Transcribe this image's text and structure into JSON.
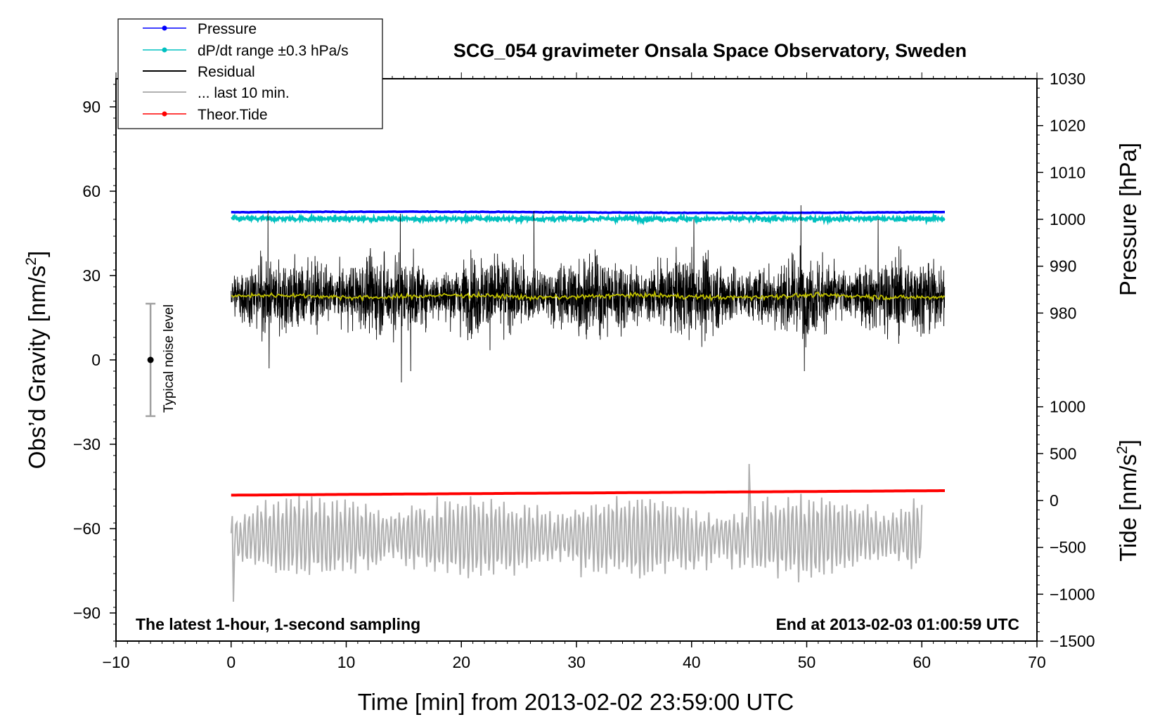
{
  "chart_data": {
    "type": "line",
    "title": "SCG_054 gravimeter Onsala Space Observatory, Sweden",
    "xlabel": "Time [min] from 2013-02-02 23:59:00 UTC",
    "ylabel_left": "Obs’d Gravity [nm/s",
    "ylabel_left_sup": "2",
    "ylabel_left_end": "]",
    "ylabel_right_upper": "Pressure [hPa]",
    "ylabel_right_lower": "Tide [nm/s",
    "ylabel_right_lower_sup": "2",
    "ylabel_right_lower_end": "]",
    "xlim": [
      -10,
      70
    ],
    "ylim_left": [
      -100,
      100
    ],
    "ylim_pressure": [
      970,
      1030
    ],
    "ylim_tide": [
      -1500,
      1500
    ],
    "x_ticks": [
      "−10",
      "0",
      "10",
      "20",
      "30",
      "40",
      "50",
      "60",
      "70"
    ],
    "x_tick_values": [
      -10,
      0,
      10,
      20,
      30,
      40,
      50,
      60,
      70
    ],
    "left_ticks": [
      "90",
      "60",
      "30",
      "0",
      "−30",
      "−60",
      "−90"
    ],
    "left_tick_values": [
      90,
      60,
      30,
      0,
      -30,
      -60,
      -90
    ],
    "pressure_ticks": [
      "1030",
      "1020",
      "1010",
      "1000",
      "990",
      "980"
    ],
    "pressure_tick_values": [
      1030,
      1020,
      1010,
      1000,
      990,
      980
    ],
    "tide_ticks": [
      "1000",
      "500",
      "0",
      "−500",
      "−1000",
      "−1500"
    ],
    "tide_tick_values": [
      1000,
      500,
      0,
      -500,
      -1000,
      -1500
    ],
    "legend": [
      {
        "label": "Pressure",
        "color": "#0000ff",
        "marker": true
      },
      {
        "label": "dP/dt range ±0.3 hPa/s",
        "color": "#00c0c0",
        "marker": true
      },
      {
        "label": "Residual",
        "color": "#000000",
        "marker": false
      },
      {
        "label": "... last 10 min.",
        "color": "#b0b0b0",
        "marker": false
      },
      {
        "label": "Theor.Tide",
        "color": "#ff0000",
        "marker": true
      }
    ],
    "annotations": {
      "bottom_left": "The latest 1-hour, 1-second sampling",
      "bottom_right": "End at 2013-02-03 01:00:59 UTC",
      "noise_label": "Typical noise level"
    },
    "noise_bar": {
      "x": -7,
      "center": 0,
      "half_range": 20
    },
    "series": [
      {
        "name": "Pressure",
        "color": "#0000ff",
        "axis": "pressure",
        "x_range": [
          0,
          62
        ],
        "level": 1001.5
      },
      {
        "name": "dP/dt range",
        "color": "#00c0c0",
        "axis": "left",
        "x_range": [
          0,
          62
        ],
        "level": 50.2
      },
      {
        "name": "Residual",
        "color": "#000000",
        "axis": "left",
        "x_range": [
          0,
          62
        ],
        "level": 23,
        "spread": 9,
        "min": -9,
        "max": 55
      },
      {
        "name": "Residual smoothed",
        "color": "#c0c000",
        "axis": "left",
        "x_range": [
          0,
          62
        ],
        "level": 22.6
      },
      {
        "name": "Theor.Tide",
        "color": "#ff0000",
        "axis": "left",
        "x_range": [
          0,
          62
        ],
        "start": -48.1,
        "end": -46.5
      },
      {
        "name": "... last 10 min.",
        "color": "#b0b0b0",
        "axis": "left",
        "x_range": [
          0,
          60
        ],
        "level": -63,
        "amplitude": 9,
        "min": -86,
        "max": -37
      }
    ],
    "colors": {
      "axis": "#000000",
      "grid": "none",
      "background": "#ffffff"
    }
  }
}
